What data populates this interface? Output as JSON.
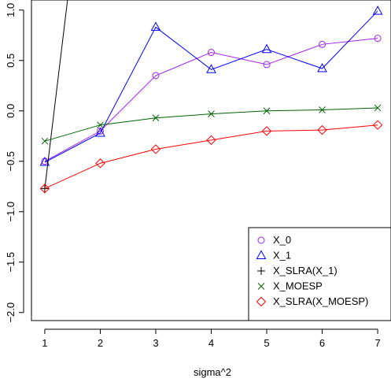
{
  "chart_data": {
    "type": "line",
    "title": "",
    "xlabel": "sigma^2",
    "ylabel": "",
    "x": [
      1,
      2,
      3,
      4,
      5,
      6,
      7
    ],
    "xticks": [
      "1",
      "2",
      "3",
      "4",
      "5",
      "6",
      "7"
    ],
    "yticks": [
      "−2.0",
      "−1.5",
      "−1.0",
      "−0.5",
      "0.0",
      "0.5",
      "1.0"
    ],
    "ytick_values": [
      -2.0,
      -1.5,
      -1.0,
      -0.5,
      0.0,
      0.5,
      1.0
    ],
    "xlim": [
      0.76,
      7.24
    ],
    "ylim": [
      -2.08,
      1.1
    ],
    "grid": false,
    "legend_position": "bottom-right",
    "series": [
      {
        "name": "X_0",
        "color": "#a020f0",
        "marker": "circle",
        "values": [
          -0.5,
          -0.2,
          0.35,
          0.58,
          0.46,
          0.66,
          0.72
        ]
      },
      {
        "name": "X_1",
        "color": "#0000ff",
        "marker": "triangle",
        "values": [
          -0.51,
          -0.22,
          0.83,
          0.41,
          0.61,
          0.42,
          0.99
        ]
      },
      {
        "name": "X_SLRA(X_1)",
        "color": "#000000",
        "marker": "plus",
        "x": [
          1,
          1.41
        ],
        "values": [
          -0.77,
          1.1
        ]
      },
      {
        "name": "X_MOESP",
        "color": "#006400",
        "marker": "cross",
        "values": [
          -0.3,
          -0.14,
          -0.07,
          -0.03,
          0.0,
          0.01,
          0.03
        ]
      },
      {
        "name": "X_SLRA(X_MOESP)",
        "color": "#ff0000",
        "marker": "diamond",
        "values": [
          -0.77,
          -0.52,
          -0.38,
          -0.29,
          -0.2,
          -0.19,
          -0.14
        ]
      }
    ]
  }
}
